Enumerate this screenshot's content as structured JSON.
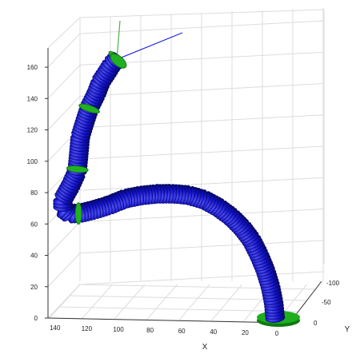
{
  "chart_data": {
    "type": "3d-line",
    "title": "",
    "xlabel": "X",
    "ylabel": "Y",
    "zlabel": "",
    "grid": true,
    "z_ticks": [
      "0",
      "20",
      "40",
      "60",
      "80",
      "100",
      "120",
      "140",
      "160"
    ],
    "x_ticks": [
      "140",
      "120",
      "100",
      "80",
      "60",
      "40",
      "20",
      "0"
    ],
    "y_ticks": [
      "-100",
      "-50",
      "0"
    ],
    "zlim": [
      0,
      170
    ],
    "xlim": [
      0,
      140
    ],
    "ylim": [
      -100,
      0
    ],
    "colors": {
      "tube": "#1111c8",
      "tube_dark": "#05055a",
      "tube_highlight": "#8a8aff",
      "rings": "#22b022",
      "base": "#1fae1f",
      "x_axis_line": "#4caf50",
      "z_axis_line": "#2222dd",
      "grid": "#dcdcdc",
      "axes": "#333333"
    },
    "series": [
      {
        "values_xyz": [
          [
            0,
            0,
            0
          ],
          [
            1,
            0,
            10
          ],
          [
            3,
            0,
            20
          ],
          [
            6,
            0,
            30
          ],
          [
            10,
            0,
            40
          ],
          [
            15,
            0,
            50
          ],
          [
            21,
            0,
            58
          ],
          [
            28,
            0,
            65
          ],
          [
            36,
            0,
            71
          ],
          [
            45,
            0,
            76
          ],
          [
            55,
            0,
            79
          ],
          [
            65,
            0,
            80
          ],
          [
            75,
            0,
            80
          ],
          [
            85,
            0,
            79
          ],
          [
            95,
            0,
            77
          ],
          [
            105,
            0,
            73
          ],
          [
            115,
            0,
            70
          ],
          [
            124,
            0,
            68
          ],
          [
            130,
            0,
            68
          ],
          [
            134,
            0,
            71
          ],
          [
            134,
            0,
            77
          ],
          [
            129,
            0,
            86
          ],
          [
            125,
            0,
            95
          ],
          [
            124,
            0,
            106
          ],
          [
            123,
            0,
            117
          ],
          [
            120,
            0,
            127
          ],
          [
            117,
            0,
            136
          ],
          [
            113,
            0,
            144
          ],
          [
            110,
            0,
            152
          ],
          [
            106,
            0,
            158
          ],
          [
            103,
            0,
            163
          ],
          [
            100,
            0,
            166
          ]
        ]
      }
    ],
    "ring_positions": [
      0,
      68,
      96,
      135,
      166
    ],
    "base_at": [
      0,
      0,
      0
    ],
    "tip_at": [
      100,
      0,
      166
    ]
  }
}
